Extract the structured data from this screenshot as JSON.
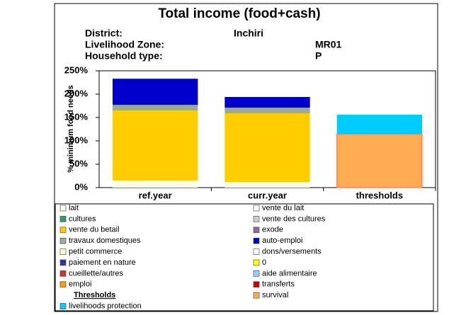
{
  "chart_data": {
    "type": "stacked_bar",
    "title": "Total income (food+cash)",
    "subtitle_rows": [
      [
        "District:",
        "Inchiri"
      ],
      [
        "Livelihood Zone:",
        "MR01"
      ],
      [
        "Household type:",
        "P"
      ]
    ],
    "ylabel": "% minimum food needs",
    "categories": [
      "ref.year",
      "curr.year",
      "thresholds"
    ],
    "ylim": [
      0,
      250
    ],
    "yticks": [
      {
        "value": 0,
        "label": "0%"
      },
      {
        "value": 50,
        "label": "50%"
      },
      {
        "value": 100,
        "label": "100%"
      },
      {
        "value": 150,
        "label": "150%"
      },
      {
        "value": 200,
        "label": "200%"
      },
      {
        "value": 250,
        "label": "250%"
      }
    ],
    "legend_thresholds_heading": "Thresholds",
    "series": [
      {
        "name": "lait",
        "color": "#fffde8",
        "values": [
          15,
          12,
          null
        ]
      },
      {
        "name": "cultures",
        "color": "#339966",
        "values": [
          null,
          null,
          null
        ]
      },
      {
        "name": "vente du betail",
        "color": "#ffcc00",
        "values": [
          150,
          147,
          null
        ]
      },
      {
        "name": "travaux domestiques",
        "color": "#99aa99",
        "values": [
          12,
          12,
          null
        ]
      },
      {
        "name": "petit commerce",
        "color": "#ffffcc",
        "values": [
          null,
          null,
          null
        ]
      },
      {
        "name": "paiement en nature",
        "color": "#333399",
        "values": [
          null,
          null,
          null
        ]
      },
      {
        "name": "cueillette/autres",
        "color": "#cc3333",
        "values": [
          null,
          null,
          null
        ]
      },
      {
        "name": "emploi",
        "color": "#ff9900",
        "values": [
          null,
          null,
          null
        ]
      },
      {
        "name": "vente du lait",
        "color": "#ffffff",
        "values": [
          null,
          null,
          null
        ]
      },
      {
        "name": "vente des cultures",
        "color": "#cccccc",
        "values": [
          null,
          null,
          null
        ]
      },
      {
        "name": "exode",
        "color": "#996699",
        "values": [
          null,
          null,
          null
        ]
      },
      {
        "name": "auto-emploi",
        "color": "#0000cc",
        "values": [
          56,
          23,
          null
        ]
      },
      {
        "name": "dons/versements",
        "color": "#ffffff",
        "values": [
          null,
          null,
          null
        ]
      },
      {
        "name": "0",
        "color": "#ffff00",
        "values": [
          null,
          null,
          null
        ]
      },
      {
        "name": "aide alimentaire",
        "color": "#99ccff",
        "values": [
          null,
          null,
          null
        ]
      },
      {
        "name": "transferts",
        "color": "#cc0000",
        "values": [
          null,
          null,
          null
        ]
      },
      {
        "name": "survival",
        "color": "#ffaa55",
        "values": [
          null,
          null,
          115
        ]
      },
      {
        "name": "livelihoods protection",
        "color": "#00ccff",
        "values": [
          null,
          null,
          41
        ]
      }
    ]
  }
}
